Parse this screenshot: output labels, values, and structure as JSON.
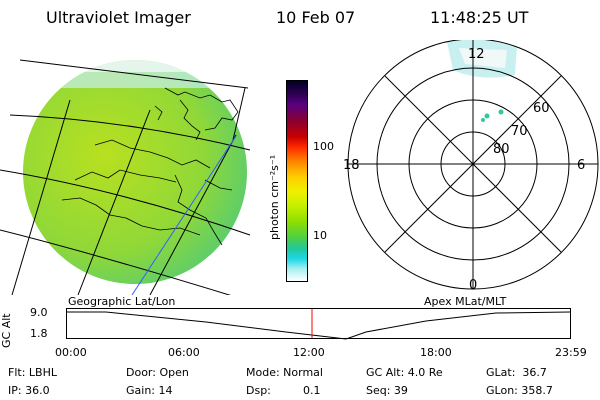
{
  "header": {
    "instrument": "Ultraviolet Imager",
    "date": "10 Feb 07",
    "time": "11:48:25 UT"
  },
  "colorbar": {
    "unit_label": "photon cm⁻²s⁻¹",
    "ticks": [
      "100",
      "10"
    ],
    "colors": [
      "#000028",
      "#2a004e",
      "#5a0080",
      "#8a0030",
      "#c80000",
      "#ff2800",
      "#ff6a00",
      "#ffa000",
      "#ffcc00",
      "#f0f000",
      "#c8f000",
      "#90e000",
      "#50d040",
      "#20c8a0",
      "#20d8e8",
      "#a8f0f0",
      "#ffffff"
    ]
  },
  "polar": {
    "mlt_labels": {
      "top": "12",
      "left": "18",
      "right": "6",
      "bottom": "0"
    },
    "lat_labels": [
      "60",
      "70",
      "80"
    ]
  },
  "timeline": {
    "left_label": "Geographic Lat/Lon",
    "right_label": "Apex MLat/MLT",
    "y_axis_label": "GC Alt",
    "y_ticks": [
      "9.0",
      "1.8"
    ],
    "x_ticks": [
      "00:00",
      "06:00",
      "12:00",
      "18:00",
      "23:59"
    ],
    "marker_color": "#ff0000"
  },
  "info": {
    "filter": "Flt: LBHL",
    "ip": "IP: 36.0",
    "door": "Door: Open",
    "gain": "Gain: 14",
    "mode": "Mode: Normal",
    "dsp_label": "Dsp:",
    "dsp_value": "0.1",
    "gc_alt": "GC Alt: 4.0 Re",
    "seq": "Seq: 39",
    "glat": "GLat:  36.7",
    "glon": "GLon: 358.7"
  }
}
